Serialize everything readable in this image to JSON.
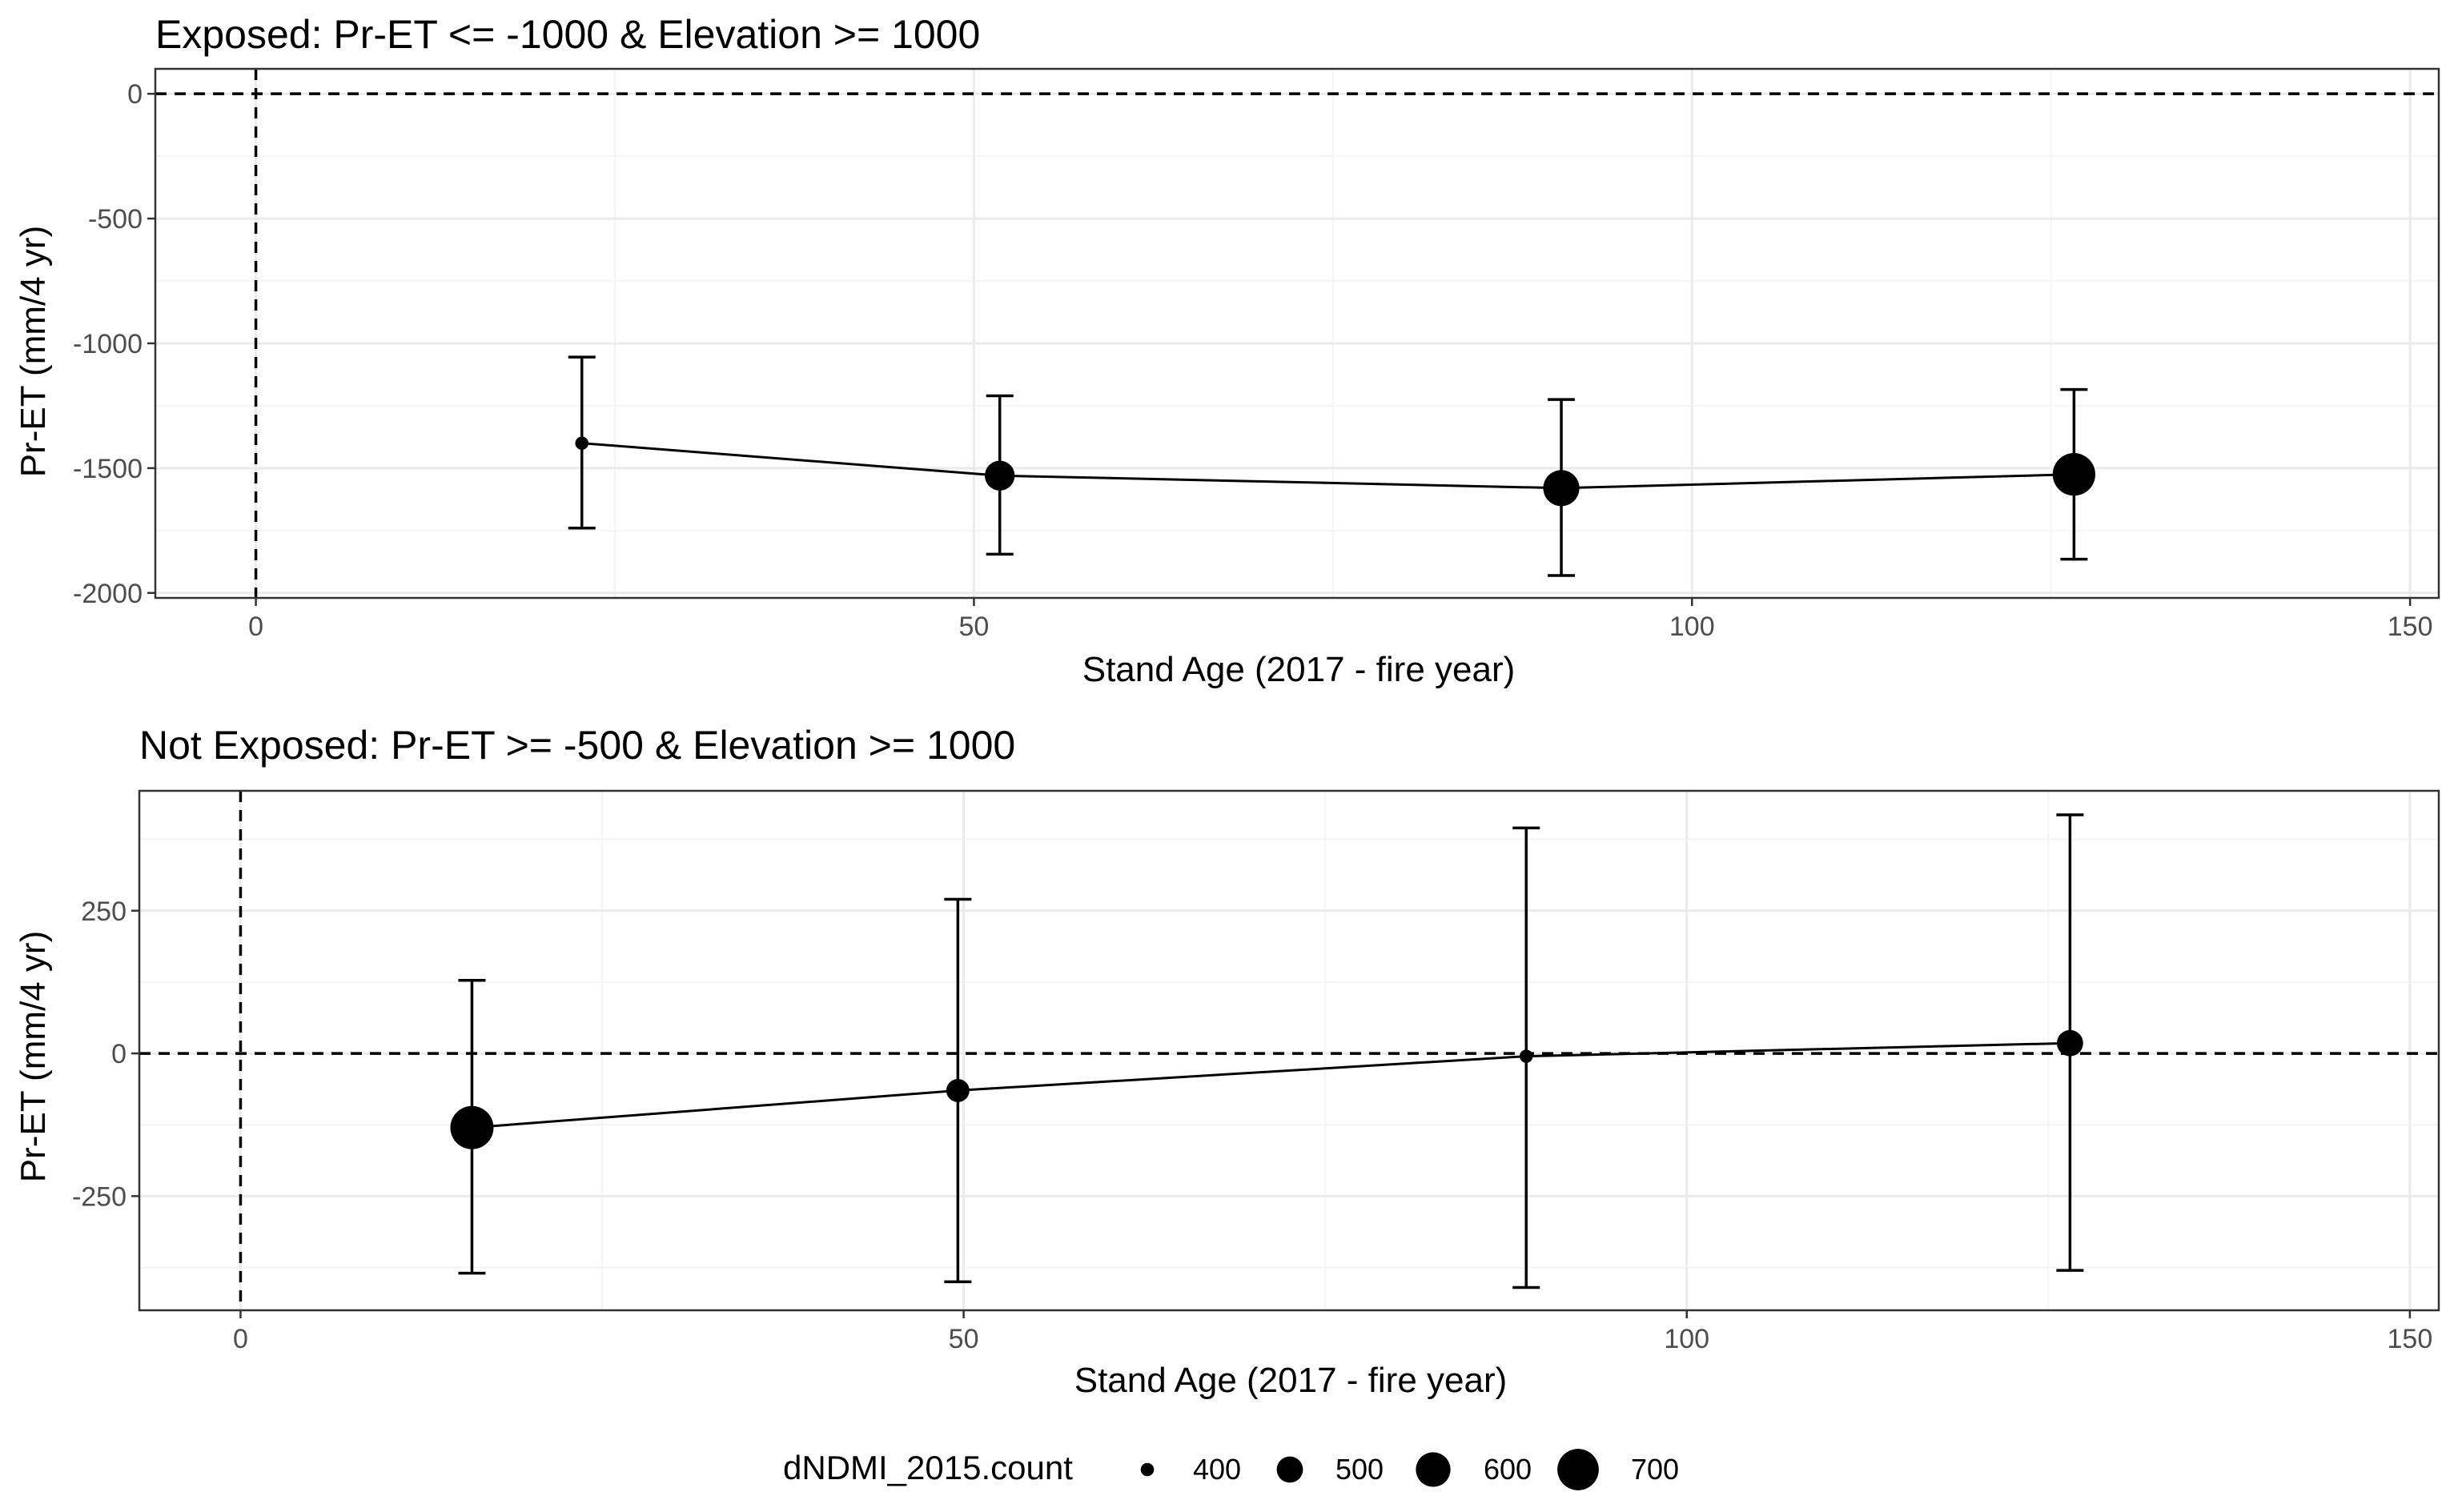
{
  "chart_data": [
    {
      "type": "line",
      "title": "Exposed: Pr-ET <= -1000 & Elevation >= 1000",
      "xlabel": "Stand Age (2017 - fire year)",
      "ylabel": "Pr-ET (mm/4 yr)",
      "xlim": [
        -7,
        152
      ],
      "ylim": [
        -2020,
        100
      ],
      "x_ticks": [
        0,
        50,
        100,
        150
      ],
      "y_ticks": [
        0,
        -500,
        -1000,
        -1500,
        -2000
      ],
      "x_tick_labels": [
        "0",
        "50",
        "100",
        "150"
      ],
      "y_tick_labels": [
        "0",
        "-500",
        "-1000",
        "-1500",
        "-2000"
      ],
      "reference_lines": {
        "hline": 0,
        "vline": 0,
        "style": "dashed"
      },
      "grid": true,
      "series": [
        {
          "x": [
            22.7,
            51.8,
            90.9,
            126.6
          ],
          "y": [
            -1400,
            -1530,
            -1580,
            -1525
          ],
          "ymin": [
            -1740,
            -1845,
            -1930,
            -1865
          ],
          "ymax": [
            -1055,
            -1210,
            -1225,
            -1185
          ],
          "size": [
            400,
            540,
            620,
            720
          ]
        }
      ]
    },
    {
      "type": "line",
      "title": "Not Exposed: Pr-ET >= -500 & Elevation >= 1000",
      "xlabel": "Stand Age (2017 - fire year)",
      "ylabel": "Pr-ET (mm/4 yr)",
      "xlim": [
        -7,
        152
      ],
      "ylim": [
        -450,
        460
      ],
      "x_ticks": [
        0,
        50,
        100,
        150
      ],
      "y_ticks": [
        250,
        0,
        -250
      ],
      "x_tick_labels": [
        "0",
        "50",
        "100",
        "150"
      ],
      "y_tick_labels": [
        "250",
        "0",
        "-250"
      ],
      "reference_lines": {
        "hline": 0,
        "vline": 0,
        "style": "dashed"
      },
      "grid": true,
      "series": [
        {
          "x": [
            16,
            49.6,
            88.9,
            126.5
          ],
          "y": [
            -130,
            -65,
            -5,
            18
          ],
          "ymin": [
            -385,
            -400,
            -410,
            -380
          ],
          "ymax": [
            128,
            270,
            395,
            418
          ],
          "size": [
            730,
            470,
            400,
            500
          ]
        }
      ]
    }
  ],
  "legend": {
    "title": "dNDMI_2015.count",
    "position": "bottom",
    "items": [
      {
        "label": "400",
        "size": 400
      },
      {
        "label": "500",
        "size": 500
      },
      {
        "label": "600",
        "size": 600
      },
      {
        "label": "700",
        "size": 700
      }
    ]
  }
}
